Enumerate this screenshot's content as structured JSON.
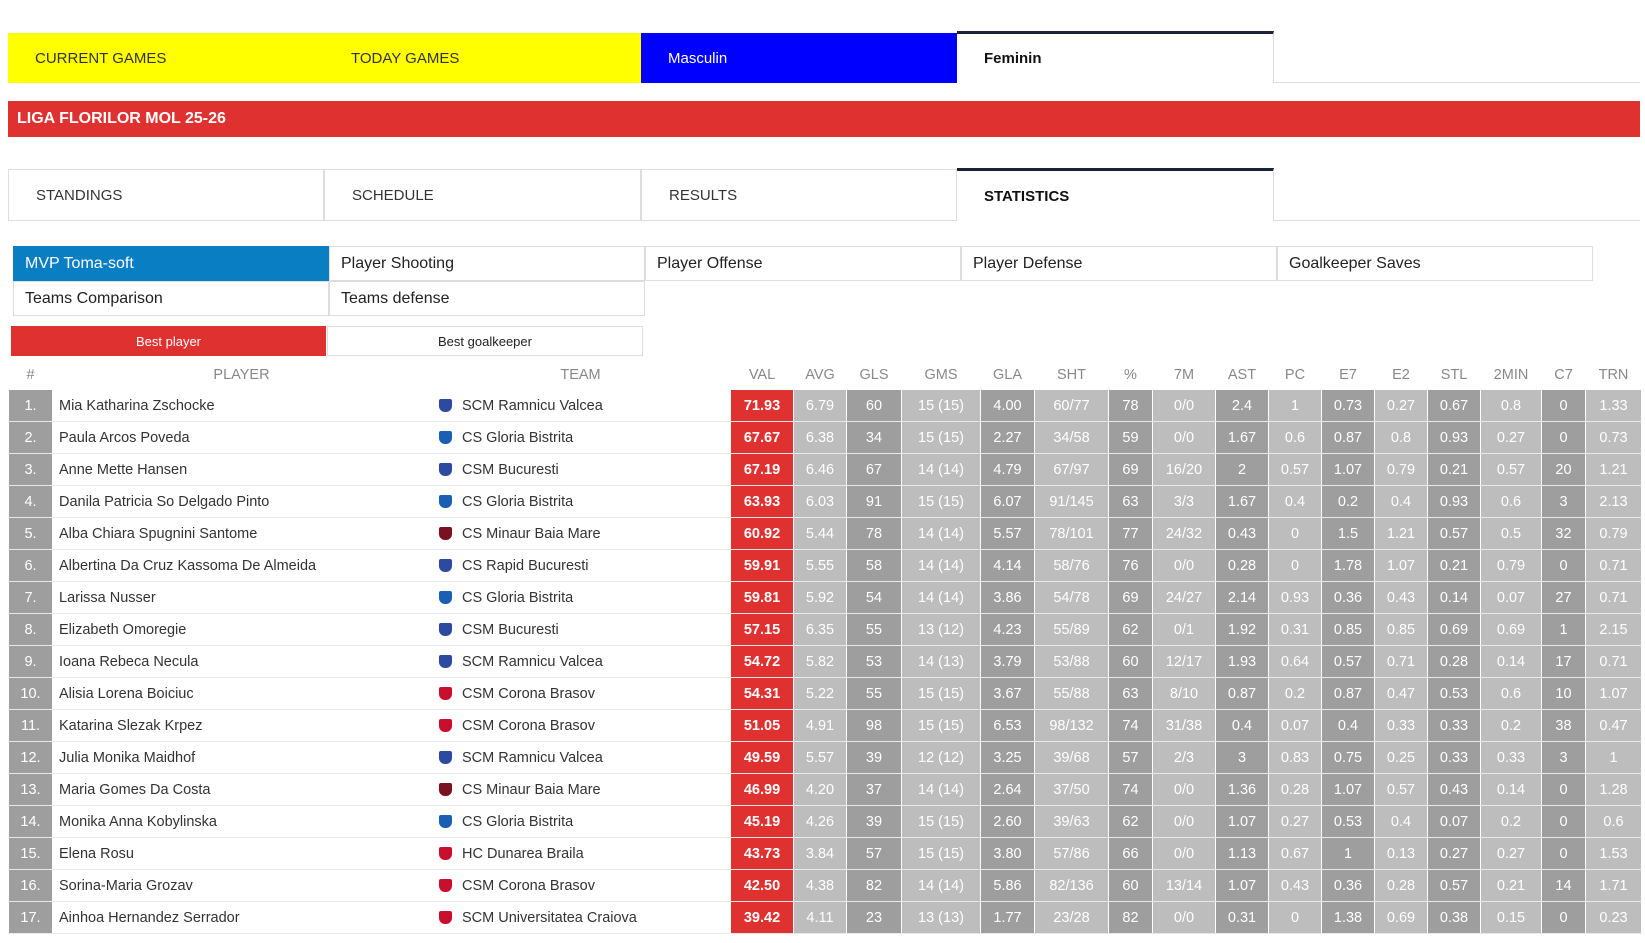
{
  "nav_tabs": [
    "CURRENT GAMES",
    "TODAY GAMES",
    "Masculin",
    "Feminin"
  ],
  "league_title": "LIGA FLORILOR MOL 25-26",
  "section_tabs": [
    "STANDINGS",
    "SCHEDULE",
    "RESULTS",
    "STATISTICS"
  ],
  "stat_tabs": [
    "MVP Toma-soft",
    "Player Shooting",
    "Player Offense",
    "Player Defense",
    "Goalkeeper Saves",
    "Teams Comparison",
    "Teams defense"
  ],
  "toggle": [
    "Best player",
    "Best goalkeeper"
  ],
  "table": {
    "headers": [
      "#",
      "PLAYER",
      "TEAM",
      "VAL",
      "AVG",
      "GLS",
      "GMS",
      "GLA",
      "SHT",
      "%",
      "7M",
      "AST",
      "PC",
      "E7",
      "E2",
      "STL",
      "2MIN",
      "C7",
      "TRN"
    ],
    "rows": [
      [
        "1.",
        "Mia Katharina Zschocke",
        "SCM Ramnicu Valcea",
        "71.93",
        "6.79",
        "60",
        "15 (15)",
        "4.00",
        "60/77",
        "78",
        "0/0",
        "2.4",
        "1",
        "0.73",
        "0.27",
        "0.67",
        "0.8",
        "0",
        "1.33"
      ],
      [
        "2.",
        "Paula Arcos Poveda",
        "CS Gloria Bistrita",
        "67.67",
        "6.38",
        "34",
        "15 (15)",
        "2.27",
        "34/58",
        "59",
        "0/0",
        "1.67",
        "0.6",
        "0.87",
        "0.8",
        "0.93",
        "0.27",
        "0",
        "0.73"
      ],
      [
        "3.",
        "Anne Mette Hansen",
        "CSM Bucuresti",
        "67.19",
        "6.46",
        "67",
        "14 (14)",
        "4.79",
        "67/97",
        "69",
        "16/20",
        "2",
        "0.57",
        "1.07",
        "0.79",
        "0.21",
        "0.57",
        "20",
        "1.21"
      ],
      [
        "4.",
        "Danila Patricia So Delgado Pinto",
        "CS Gloria Bistrita",
        "63.93",
        "6.03",
        "91",
        "15 (15)",
        "6.07",
        "91/145",
        "63",
        "3/3",
        "1.67",
        "0.4",
        "0.2",
        "0.4",
        "0.93",
        "0.6",
        "3",
        "2.13"
      ],
      [
        "5.",
        "Alba Chiara Spugnini Santome",
        "CS Minaur Baia Mare",
        "60.92",
        "5.44",
        "78",
        "14 (14)",
        "5.57",
        "78/101",
        "77",
        "24/32",
        "0.43",
        "0",
        "1.5",
        "1.21",
        "0.57",
        "0.5",
        "32",
        "0.79"
      ],
      [
        "6.",
        "Albertina Da Cruz Kassoma De Almeida",
        "CS Rapid Bucuresti",
        "59.91",
        "5.55",
        "58",
        "14 (14)",
        "4.14",
        "58/76",
        "76",
        "0/0",
        "0.28",
        "0",
        "1.78",
        "1.07",
        "0.21",
        "0.79",
        "0",
        "0.71"
      ],
      [
        "7.",
        "Larissa Nusser",
        "CS Gloria Bistrita",
        "59.81",
        "5.92",
        "54",
        "14 (14)",
        "3.86",
        "54/78",
        "69",
        "24/27",
        "2.14",
        "0.93",
        "0.36",
        "0.43",
        "0.14",
        "0.07",
        "27",
        "0.71"
      ],
      [
        "8.",
        "Elizabeth Omoregie",
        "CSM Bucuresti",
        "57.15",
        "6.35",
        "55",
        "13 (12)",
        "4.23",
        "55/89",
        "62",
        "0/1",
        "1.92",
        "0.31",
        "0.85",
        "0.85",
        "0.69",
        "0.69",
        "1",
        "2.15"
      ],
      [
        "9.",
        "Ioana Rebeca Necula",
        "SCM Ramnicu Valcea",
        "54.72",
        "5.82",
        "53",
        "14 (13)",
        "3.79",
        "53/88",
        "60",
        "12/17",
        "1.93",
        "0.64",
        "0.57",
        "0.71",
        "0.28",
        "0.14",
        "17",
        "0.71"
      ],
      [
        "10.",
        "Alisia Lorena Boiciuc",
        "CSM Corona Brasov",
        "54.31",
        "5.22",
        "55",
        "15 (15)",
        "3.67",
        "55/88",
        "63",
        "8/10",
        "0.87",
        "0.2",
        "0.87",
        "0.47",
        "0.53",
        "0.6",
        "10",
        "1.07"
      ],
      [
        "11.",
        "Katarina Slezak Krpez",
        "CSM Corona Brasov",
        "51.05",
        "4.91",
        "98",
        "15 (15)",
        "6.53",
        "98/132",
        "74",
        "31/38",
        "0.4",
        "0.07",
        "0.4",
        "0.33",
        "0.33",
        "0.2",
        "38",
        "0.47"
      ],
      [
        "12.",
        "Julia Monika Maidhof",
        "SCM Ramnicu Valcea",
        "49.59",
        "5.57",
        "39",
        "12 (12)",
        "3.25",
        "39/68",
        "57",
        "2/3",
        "3",
        "0.83",
        "0.75",
        "0.25",
        "0.33",
        "0.33",
        "3",
        "1"
      ],
      [
        "13.",
        "Maria Gomes Da Costa",
        "CS Minaur Baia Mare",
        "46.99",
        "4.20",
        "37",
        "14 (14)",
        "2.64",
        "37/50",
        "74",
        "0/0",
        "1.36",
        "0.28",
        "1.07",
        "0.57",
        "0.43",
        "0.14",
        "0",
        "1.28"
      ],
      [
        "14.",
        "Monika Anna Kobylinska",
        "CS Gloria Bistrita",
        "45.19",
        "4.26",
        "39",
        "15 (15)",
        "2.60",
        "39/63",
        "62",
        "0/0",
        "1.07",
        "0.27",
        "0.53",
        "0.4",
        "0.07",
        "0.2",
        "0",
        "0.6"
      ],
      [
        "15.",
        "Elena Rosu",
        "HC Dunarea Braila",
        "43.73",
        "3.84",
        "57",
        "15 (15)",
        "3.80",
        "57/86",
        "66",
        "0/0",
        "1.13",
        "0.67",
        "1",
        "0.13",
        "0.27",
        "0.27",
        "0",
        "1.53"
      ],
      [
        "16.",
        "Sorina-Maria Grozav",
        "CSM Corona Brasov",
        "42.50",
        "4.38",
        "82",
        "14 (14)",
        "5.86",
        "82/136",
        "60",
        "13/14",
        "1.07",
        "0.43",
        "0.36",
        "0.28",
        "0.57",
        "0.21",
        "14",
        "1.71"
      ],
      [
        "17.",
        "Ainhoa Hernandez Serrador",
        "SCM Universitatea Craiova",
        "39.42",
        "4.11",
        "23",
        "13 (13)",
        "1.77",
        "23/28",
        "82",
        "0/0",
        "0.31",
        "0",
        "1.38",
        "0.69",
        "0.38",
        "0.15",
        "0",
        "0.23"
      ]
    ]
  }
}
